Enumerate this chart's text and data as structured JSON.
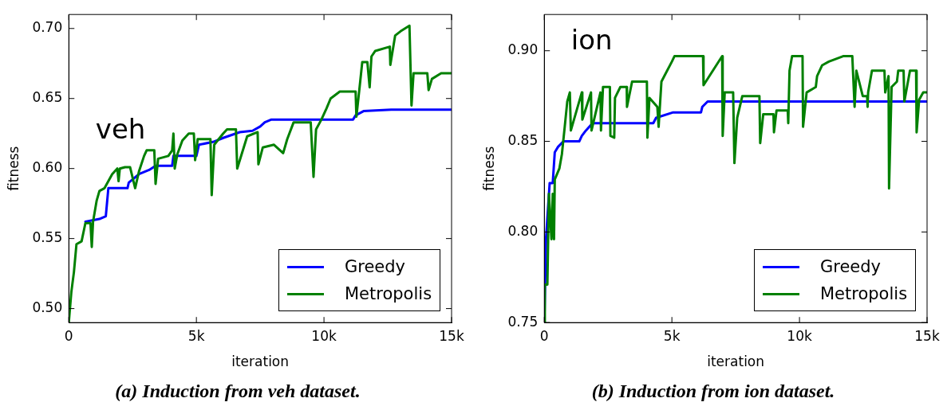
{
  "chart_data": [
    {
      "type": "line",
      "xlabel": "iteration",
      "ylabel": "fitness",
      "annotations": [
        "veh",
        "(a) Induction from veh dataset."
      ],
      "legend": "bottom right",
      "xlim": [
        0,
        15000
      ],
      "xticks": [
        0,
        {
          "value": 5000,
          "label": "5k"
        },
        {
          "value": 10000,
          "label": "10k"
        },
        {
          "value": 15000,
          "label": "15k"
        }
      ],
      "ylim": [
        0.49,
        0.71
      ],
      "yticks": [
        {
          "value": 0.5,
          "label": "0.50"
        },
        0.55,
        {
          "value": 0.6,
          "label": "0.60"
        },
        0.65,
        {
          "value": 0.7,
          "label": "0.70"
        }
      ],
      "series": [
        {
          "name": "Greedy",
          "color": "#0000ff",
          "x": [
            650,
            1200,
            1450,
            1550,
            2300,
            2350,
            2750,
            3150,
            3400,
            4050,
            4100,
            5000,
            5100,
            5650,
            6070,
            6700,
            7200,
            7500,
            7680,
            7940,
            11140,
            11240,
            11550,
            12630,
            15000
          ],
          "values": [
            0.562,
            0.564,
            0.566,
            0.586,
            0.586,
            0.59,
            0.596,
            0.599,
            0.602,
            0.602,
            0.609,
            0.609,
            0.617,
            0.619,
            0.622,
            0.626,
            0.627,
            0.63,
            0.633,
            0.635,
            0.635,
            0.638,
            0.641,
            0.642,
            0.642
          ]
        },
        {
          "name": "Metropolis",
          "color": "#008000",
          "x": [
            0,
            100,
            200,
            300,
            500,
            650,
            850,
            900,
            950,
            1090,
            1200,
            1400,
            1550,
            1700,
            1900,
            1950,
            2000,
            2200,
            2400,
            2600,
            2750,
            2950,
            3050,
            3350,
            3400,
            3500,
            3900,
            4050,
            4100,
            4150,
            4250,
            4450,
            4550,
            4700,
            4900,
            4950,
            5050,
            5550,
            5600,
            5700,
            6050,
            6200,
            6550,
            6600,
            6990,
            7400,
            7430,
            7600,
            8040,
            8400,
            8560,
            8810,
            9480,
            9590,
            9690,
            9900,
            10100,
            10260,
            10620,
            11240,
            11270,
            11390,
            11500,
            11700,
            11790,
            11860,
            12010,
            12580,
            12600,
            12790,
            13000,
            13350,
            13430,
            13510,
            14050,
            14100,
            14230,
            14590,
            15000
          ],
          "values": [
            0.49,
            0.512,
            0.526,
            0.546,
            0.548,
            0.561,
            0.561,
            0.544,
            0.562,
            0.577,
            0.584,
            0.586,
            0.591,
            0.596,
            0.6,
            0.591,
            0.6,
            0.601,
            0.601,
            0.586,
            0.598,
            0.609,
            0.613,
            0.613,
            0.589,
            0.607,
            0.609,
            0.613,
            0.625,
            0.6,
            0.61,
            0.62,
            0.622,
            0.625,
            0.625,
            0.606,
            0.621,
            0.621,
            0.581,
            0.617,
            0.625,
            0.628,
            0.628,
            0.6,
            0.623,
            0.626,
            0.603,
            0.615,
            0.617,
            0.611,
            0.621,
            0.633,
            0.633,
            0.594,
            0.628,
            0.635,
            0.643,
            0.65,
            0.655,
            0.655,
            0.637,
            0.657,
            0.676,
            0.676,
            0.658,
            0.68,
            0.684,
            0.687,
            0.674,
            0.695,
            0.698,
            0.702,
            0.645,
            0.668,
            0.668,
            0.656,
            0.664,
            0.668,
            0.668
          ]
        }
      ]
    },
    {
      "type": "line",
      "xlabel": "iteration",
      "ylabel": "fitness",
      "annotations": [
        "ion",
        "(b) Induction from ion dataset."
      ],
      "legend": "bottom right",
      "xlim": [
        0,
        15000
      ],
      "xticks": [
        0,
        {
          "value": 5000,
          "label": "5k"
        },
        {
          "value": 10000,
          "label": "10k"
        },
        {
          "value": 15000,
          "label": "15k"
        }
      ],
      "ylim": [
        0.75,
        0.92
      ],
      "yticks": [
        0.75,
        {
          "value": 0.8,
          "label": "0.80"
        },
        0.85,
        {
          "value": 0.9,
          "label": "0.90"
        }
      ],
      "series": [
        {
          "name": "Greedy",
          "color": "#0000ff",
          "x": [
            0,
            70,
            210,
            330,
            410,
            540,
            750,
            1370,
            1470,
            1630,
            1890,
            4270,
            4380,
            5050,
            6140,
            6190,
            6400,
            15000
          ],
          "values": [
            0.75,
            0.797,
            0.827,
            0.827,
            0.844,
            0.847,
            0.85,
            0.85,
            0.853,
            0.856,
            0.86,
            0.86,
            0.863,
            0.866,
            0.866,
            0.869,
            0.872,
            0.872
          ]
        },
        {
          "name": "Metropolis",
          "color": "#008000",
          "x": [
            0,
            20,
            120,
            180,
            280,
            330,
            380,
            410,
            590,
            690,
            800,
            900,
            1000,
            1040,
            1470,
            1490,
            1830,
            1850,
            2200,
            2220,
            2300,
            2570,
            2590,
            2740,
            2770,
            2980,
            3230,
            3240,
            3440,
            4020,
            4040,
            4120,
            4430,
            4480,
            4590,
            4740,
            5000,
            5100,
            6220,
            6240,
            6970,
            6990,
            7070,
            7400,
            7450,
            7560,
            7760,
            8430,
            8460,
            8580,
            8980,
            9000,
            9100,
            9540,
            9560,
            9610,
            9710,
            10120,
            10140,
            10280,
            10640,
            10690,
            10890,
            11150,
            11710,
            12070,
            12160,
            12230,
            12480,
            12650,
            12670,
            12690,
            12840,
            13330,
            13360,
            13490,
            13510,
            13610,
            13820,
            13870,
            14080,
            14110,
            14330,
            14570,
            14590,
            14690,
            14850,
            15000
          ],
          "values": [
            0.75,
            0.771,
            0.771,
            0.821,
            0.796,
            0.821,
            0.796,
            0.829,
            0.835,
            0.843,
            0.858,
            0.872,
            0.877,
            0.856,
            0.877,
            0.862,
            0.877,
            0.856,
            0.877,
            0.856,
            0.88,
            0.88,
            0.853,
            0.852,
            0.874,
            0.88,
            0.88,
            0.869,
            0.883,
            0.883,
            0.852,
            0.874,
            0.869,
            0.858,
            0.883,
            0.887,
            0.894,
            0.897,
            0.897,
            0.881,
            0.897,
            0.853,
            0.877,
            0.877,
            0.838,
            0.863,
            0.875,
            0.875,
            0.849,
            0.865,
            0.865,
            0.855,
            0.867,
            0.867,
            0.86,
            0.889,
            0.897,
            0.897,
            0.858,
            0.877,
            0.88,
            0.886,
            0.892,
            0.894,
            0.897,
            0.897,
            0.869,
            0.889,
            0.875,
            0.875,
            0.869,
            0.877,
            0.889,
            0.889,
            0.877,
            0.886,
            0.824,
            0.88,
            0.883,
            0.889,
            0.889,
            0.872,
            0.889,
            0.889,
            0.855,
            0.873,
            0.877,
            0.877
          ]
        }
      ]
    }
  ]
}
